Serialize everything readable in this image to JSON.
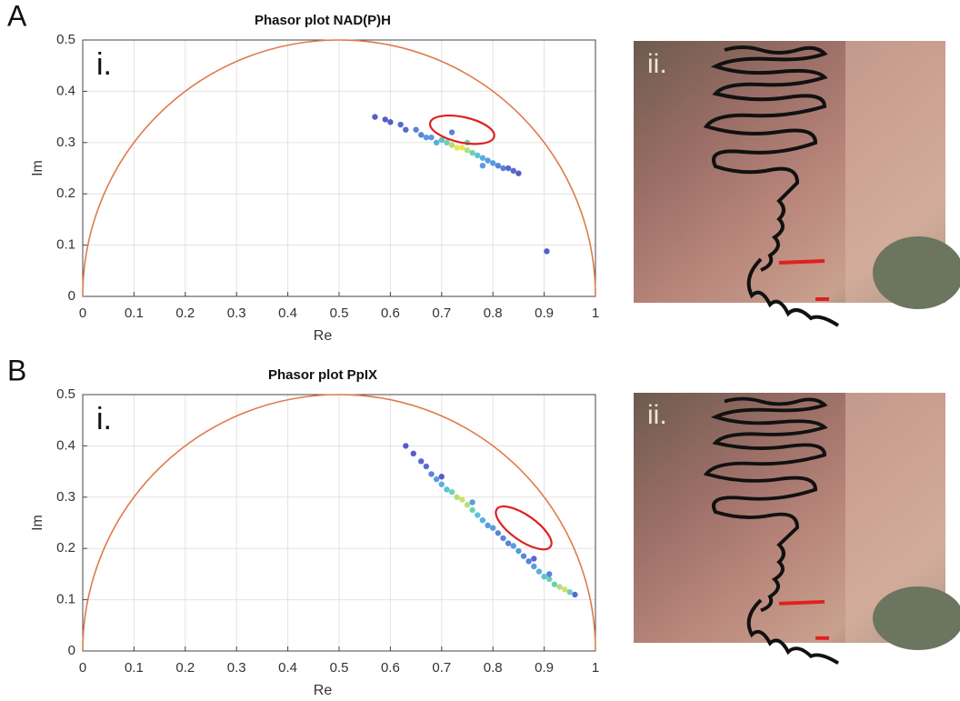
{
  "chart_data": [
    {
      "type": "scatter",
      "panel": "A",
      "label": "i.",
      "image_label": "ii.",
      "title": "Phasor plot NAD(P)H",
      "xlabel": "Re",
      "ylabel": "Im",
      "xlim": [
        0,
        1
      ],
      "ylim": [
        0,
        0.5
      ],
      "xticks": [
        0,
        0.1,
        0.2,
        0.3,
        0.4,
        0.5,
        0.6,
        0.7,
        0.8,
        0.9,
        1
      ],
      "yticks": [
        0,
        0.1,
        0.2,
        0.3,
        0.4,
        0.5
      ],
      "grid": true,
      "circle_color": "#e07a4a",
      "highlight_color": "#e02020",
      "highlight_center": [
        0.74,
        0.325
      ],
      "x": [
        0.57,
        0.59,
        0.6,
        0.62,
        0.63,
        0.65,
        0.66,
        0.67,
        0.68,
        0.69,
        0.7,
        0.71,
        0.72,
        0.73,
        0.74,
        0.75,
        0.76,
        0.77,
        0.78,
        0.79,
        0.8,
        0.81,
        0.82,
        0.83,
        0.84,
        0.85,
        0.72,
        0.75,
        0.78,
        0.905
      ],
      "values": [
        0.35,
        0.345,
        0.34,
        0.335,
        0.325,
        0.325,
        0.315,
        0.31,
        0.31,
        0.3,
        0.305,
        0.3,
        0.295,
        0.29,
        0.29,
        0.285,
        0.28,
        0.275,
        0.27,
        0.265,
        0.26,
        0.255,
        0.25,
        0.25,
        0.245,
        0.24,
        0.32,
        0.3,
        0.255,
        0.088
      ],
      "colors": [
        "#3b3fc0",
        "#3b3fc0",
        "#3b3fc0",
        "#3b50c8",
        "#3b50c8",
        "#3c6fd0",
        "#3c6fd0",
        "#3c8ad8",
        "#3c8ad8",
        "#3fa0d8",
        "#3fb8c8",
        "#55c8a8",
        "#a8d860",
        "#e4e33a",
        "#e4e33a",
        "#a8d860",
        "#55c8a8",
        "#3fb8c8",
        "#3fa0d8",
        "#3c8ad8",
        "#3c8ad8",
        "#3c6fd0",
        "#3c6fd0",
        "#3b50c8",
        "#3b50c8",
        "#3b3fc0",
        "#3c6fd0",
        "#55c8a8",
        "#3c8ad8",
        "#3b3fc0"
      ]
    },
    {
      "type": "scatter",
      "panel": "B",
      "label": "i.",
      "image_label": "ii.",
      "title": "Phasor plot PpIX",
      "xlabel": "Re",
      "ylabel": "Im",
      "xlim": [
        0,
        1
      ],
      "ylim": [
        0,
        0.5
      ],
      "xticks": [
        0,
        0.1,
        0.2,
        0.3,
        0.4,
        0.5,
        0.6,
        0.7,
        0.8,
        0.9,
        1
      ],
      "yticks": [
        0,
        0.1,
        0.2,
        0.3,
        0.4,
        0.5
      ],
      "grid": true,
      "circle_color": "#e07a4a",
      "highlight_color": "#e02020",
      "highlight_center": [
        0.86,
        0.24
      ],
      "x": [
        0.63,
        0.645,
        0.66,
        0.67,
        0.68,
        0.69,
        0.7,
        0.71,
        0.72,
        0.73,
        0.74,
        0.75,
        0.76,
        0.77,
        0.78,
        0.79,
        0.8,
        0.81,
        0.82,
        0.83,
        0.84,
        0.85,
        0.86,
        0.87,
        0.88,
        0.89,
        0.9,
        0.91,
        0.92,
        0.93,
        0.94,
        0.95,
        0.96,
        0.7,
        0.76,
        0.88,
        0.91
      ],
      "values": [
        0.4,
        0.385,
        0.37,
        0.36,
        0.345,
        0.335,
        0.325,
        0.315,
        0.31,
        0.3,
        0.295,
        0.285,
        0.275,
        0.265,
        0.255,
        0.245,
        0.24,
        0.23,
        0.22,
        0.21,
        0.205,
        0.195,
        0.185,
        0.175,
        0.165,
        0.155,
        0.145,
        0.14,
        0.13,
        0.125,
        0.12,
        0.115,
        0.11,
        0.34,
        0.29,
        0.18,
        0.15
      ],
      "colors": [
        "#3b3fc0",
        "#3b3fc0",
        "#3b50c8",
        "#3b50c8",
        "#3c6fd0",
        "#3c8ad8",
        "#3fa0d8",
        "#3fb8c8",
        "#55c8a8",
        "#a8d860",
        "#c8dc50",
        "#a8d860",
        "#55c8a8",
        "#3fb8c8",
        "#3fa0d8",
        "#3c8ad8",
        "#3c8ad8",
        "#3c6fd0",
        "#3c6fd0",
        "#3c6fd0",
        "#3c8ad8",
        "#3c8ad8",
        "#3c6fd0",
        "#3c6fd0",
        "#3c8ad8",
        "#3fa0d8",
        "#3fb8c8",
        "#55c8a8",
        "#55c8a8",
        "#a8d860",
        "#c8dc50",
        "#55c8a8",
        "#3b50c8",
        "#3b3fc0",
        "#3c8ad8",
        "#3b50c8",
        "#3c6fd0"
      ]
    }
  ]
}
